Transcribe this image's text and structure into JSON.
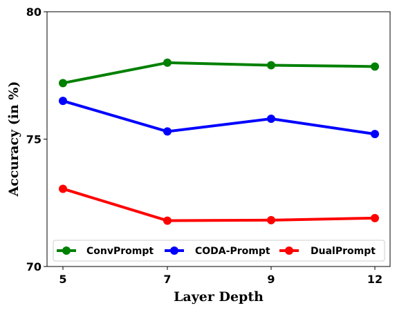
{
  "chart_data": {
    "type": "line",
    "title": "",
    "xlabel": "Layer Depth",
    "ylabel": "Accuracy (in %)",
    "categories": [
      "5",
      "7",
      "9",
      "12"
    ],
    "ylim": [
      70,
      80
    ],
    "yticks": [
      "70",
      "75",
      "80"
    ],
    "grid": false,
    "legend_position": "bottom",
    "series": [
      {
        "name": "ConvPrompt",
        "color": "#008000",
        "values": [
          77.2,
          78.0,
          77.9,
          77.85
        ]
      },
      {
        "name": "CODA-Prompt",
        "color": "#0000ff",
        "values": [
          76.5,
          75.3,
          75.8,
          75.2
        ]
      },
      {
        "name": "DualPrompt",
        "color": "#ff0000",
        "values": [
          73.05,
          71.8,
          71.82,
          71.9
        ]
      }
    ]
  }
}
